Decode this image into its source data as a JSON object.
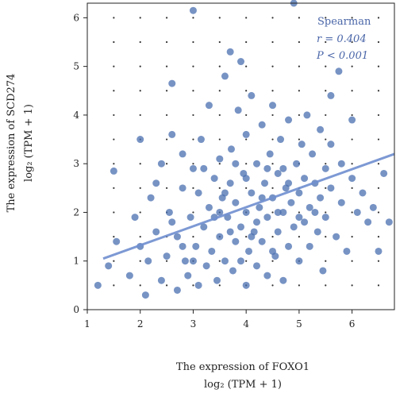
{
  "chart_data": {
    "type": "scatter",
    "title": "",
    "xlabel_line1": "The expression of FOXO1",
    "xlabel_line2": "log₂ (TPM + 1)",
    "ylabel_line1": "The expression of SCD274",
    "ylabel_line2": "log₂ (TPM + 1)",
    "xlim": [
      1,
      6.8
    ],
    "ylim": [
      0,
      6.3
    ],
    "xticks": [
      "1",
      "2",
      "3",
      "4",
      "5",
      "6"
    ],
    "yticks": [
      "0",
      "1",
      "2",
      "3",
      "4",
      "5",
      "6"
    ],
    "grid": "dotted",
    "annotation": {
      "method": "Spearman",
      "r_text": "r = 0.404",
      "p_text": "P < 0.001"
    },
    "colors": {
      "points": "#4a6fb0",
      "line": "#6f8fd0",
      "annotation": "#4a66a8"
    },
    "regression": {
      "x": [
        1.3,
        6.8
      ],
      "y": [
        1.05,
        3.2
      ]
    },
    "series": [
      {
        "points": [
          [
            1.2,
            0.5
          ],
          [
            1.4,
            0.9
          ],
          [
            1.55,
            1.4
          ],
          [
            1.5,
            2.85
          ],
          [
            1.8,
            0.7
          ],
          [
            1.9,
            1.9
          ],
          [
            2.0,
            1.3
          ],
          [
            2.0,
            3.5
          ],
          [
            2.1,
            0.3
          ],
          [
            2.15,
            1.0
          ],
          [
            2.2,
            2.3
          ],
          [
            2.3,
            1.6
          ],
          [
            2.4,
            0.6
          ],
          [
            2.4,
            3.0
          ],
          [
            2.5,
            1.1
          ],
          [
            2.55,
            2.0
          ],
          [
            2.6,
            4.65
          ],
          [
            2.6,
            3.6
          ],
          [
            2.7,
            0.4
          ],
          [
            2.7,
            1.5
          ],
          [
            2.8,
            2.5
          ],
          [
            2.8,
            3.2
          ],
          [
            2.85,
            1.0
          ],
          [
            2.9,
            0.7
          ],
          [
            2.95,
            1.9
          ],
          [
            3.0,
            6.15
          ],
          [
            3.0,
            2.9
          ],
          [
            3.05,
            1.3
          ],
          [
            3.1,
            0.5
          ],
          [
            3.1,
            2.4
          ],
          [
            3.15,
            3.5
          ],
          [
            3.2,
            1.7
          ],
          [
            3.25,
            0.9
          ],
          [
            3.3,
            2.1
          ],
          [
            3.3,
            4.2
          ],
          [
            3.35,
            1.2
          ],
          [
            3.4,
            2.7
          ],
          [
            3.45,
            0.6
          ],
          [
            3.5,
            1.5
          ],
          [
            3.5,
            3.1
          ],
          [
            3.55,
            2.3
          ],
          [
            3.6,
            4.8
          ],
          [
            3.6,
            1.0
          ],
          [
            3.65,
            1.9
          ],
          [
            3.7,
            5.3
          ],
          [
            3.7,
            2.6
          ],
          [
            3.72,
            3.3
          ],
          [
            3.75,
            0.8
          ],
          [
            3.8,
            1.4
          ],
          [
            3.8,
            2.2
          ],
          [
            3.85,
            4.1
          ],
          [
            3.9,
            5.1
          ],
          [
            3.9,
            1.7
          ],
          [
            3.95,
            2.8
          ],
          [
            4.0,
            0.5
          ],
          [
            4.0,
            2.0
          ],
          [
            4.0,
            3.6
          ],
          [
            4.05,
            1.2
          ],
          [
            4.1,
            2.4
          ],
          [
            4.1,
            4.4
          ],
          [
            4.15,
            1.6
          ],
          [
            4.2,
            3.0
          ],
          [
            4.2,
            0.9
          ],
          [
            4.25,
            2.1
          ],
          [
            4.3,
            3.8
          ],
          [
            4.3,
            1.4
          ],
          [
            4.35,
            2.6
          ],
          [
            4.4,
            0.7
          ],
          [
            4.4,
            1.9
          ],
          [
            4.45,
            3.2
          ],
          [
            4.5,
            2.3
          ],
          [
            4.5,
            4.2
          ],
          [
            4.55,
            1.1
          ],
          [
            4.6,
            2.8
          ],
          [
            4.6,
            1.6
          ],
          [
            4.65,
            3.5
          ],
          [
            4.7,
            2.0
          ],
          [
            4.7,
            0.6
          ],
          [
            4.75,
            2.5
          ],
          [
            4.8,
            1.3
          ],
          [
            4.8,
            3.9
          ],
          [
            4.85,
            2.2
          ],
          [
            4.9,
            6.3
          ],
          [
            4.9,
            1.7
          ],
          [
            4.95,
            3.0
          ],
          [
            5.0,
            2.4
          ],
          [
            5.0,
            1.0
          ],
          [
            5.05,
            3.4
          ],
          [
            5.1,
            1.8
          ],
          [
            5.1,
            2.7
          ],
          [
            5.15,
            4.0
          ],
          [
            5.2,
            2.1
          ],
          [
            5.2,
            1.3
          ],
          [
            5.25,
            3.2
          ],
          [
            5.3,
            2.6
          ],
          [
            5.35,
            1.6
          ],
          [
            5.4,
            3.7
          ],
          [
            5.4,
            2.3
          ],
          [
            5.45,
            0.8
          ],
          [
            5.5,
            2.9
          ],
          [
            5.5,
            1.9
          ],
          [
            5.6,
            2.5
          ],
          [
            5.6,
            3.4
          ],
          [
            5.7,
            1.5
          ],
          [
            5.75,
            4.9
          ],
          [
            5.8,
            2.2
          ],
          [
            5.8,
            3.0
          ],
          [
            5.9,
            1.2
          ],
          [
            6.0,
            2.7
          ],
          [
            6.0,
            3.9
          ],
          [
            6.1,
            2.0
          ],
          [
            6.2,
            2.4
          ],
          [
            6.3,
            1.8
          ],
          [
            6.4,
            2.1
          ],
          [
            6.5,
            1.2
          ],
          [
            6.6,
            2.8
          ],
          [
            6.7,
            1.8
          ],
          [
            3.0,
            1.0
          ],
          [
            3.2,
            2.9
          ],
          [
            3.4,
            1.9
          ],
          [
            3.6,
            2.4
          ],
          [
            3.8,
            3.0
          ],
          [
            4.0,
            2.7
          ],
          [
            4.2,
            1.8
          ],
          [
            4.4,
            2.9
          ],
          [
            4.6,
            2.0
          ],
          [
            4.8,
            2.6
          ],
          [
            5.0,
            1.9
          ],
          [
            3.5,
            2.0
          ],
          [
            4.1,
            1.5
          ],
          [
            2.6,
            1.8
          ],
          [
            2.8,
            1.3
          ],
          [
            3.9,
            1.0
          ],
          [
            4.5,
            1.2
          ],
          [
            5.3,
            2.0
          ],
          [
            4.3,
            2.3
          ],
          [
            3.7,
            1.6
          ],
          [
            4.7,
            2.9
          ],
          [
            2.3,
            2.6
          ],
          [
            5.6,
            4.4
          ]
        ]
      }
    ]
  }
}
